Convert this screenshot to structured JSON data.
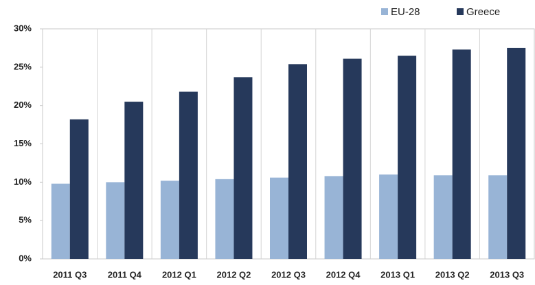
{
  "chart_data": {
    "type": "bar",
    "categories": [
      "2011 Q3",
      "2011 Q4",
      "2012 Q1",
      "2012 Q2",
      "2012 Q3",
      "2012 Q4",
      "2013 Q1",
      "2013 Q2",
      "2013 Q3"
    ],
    "series": [
      {
        "name": "EU-28",
        "color": "#98b4d6",
        "values": [
          9.8,
          10.0,
          10.2,
          10.4,
          10.6,
          10.8,
          11.0,
          10.9,
          10.9
        ]
      },
      {
        "name": "Greece",
        "color": "#26395b",
        "values": [
          18.2,
          20.5,
          21.8,
          23.7,
          25.4,
          26.1,
          26.5,
          27.3,
          27.5
        ]
      }
    ],
    "ylim": [
      0,
      30
    ],
    "yticks": [
      {
        "value": 0,
        "label": "0%"
      },
      {
        "value": 5,
        "label": "5%"
      },
      {
        "value": 10,
        "label": "10%"
      },
      {
        "value": 15,
        "label": "15%"
      },
      {
        "value": 20,
        "label": "20%"
      },
      {
        "value": 25,
        "label": "25%"
      },
      {
        "value": 30,
        "label": "30%"
      }
    ],
    "legend": "top-right"
  }
}
